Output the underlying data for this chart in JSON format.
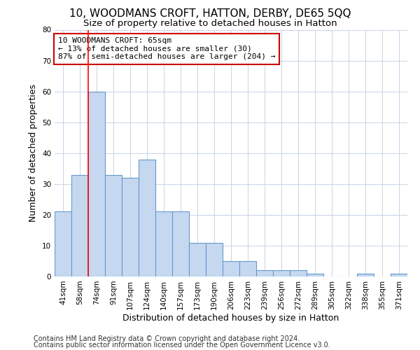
{
  "title": "10, WOODMANS CROFT, HATTON, DERBY, DE65 5QQ",
  "subtitle": "Size of property relative to detached houses in Hatton",
  "xlabel": "Distribution of detached houses by size in Hatton",
  "ylabel": "Number of detached properties",
  "categories": [
    "41sqm",
    "58sqm",
    "74sqm",
    "91sqm",
    "107sqm",
    "124sqm",
    "140sqm",
    "157sqm",
    "173sqm",
    "190sqm",
    "206sqm",
    "223sqm",
    "239sqm",
    "256sqm",
    "272sqm",
    "289sqm",
    "305sqm",
    "322sqm",
    "338sqm",
    "355sqm",
    "371sqm"
  ],
  "values": [
    21,
    33,
    60,
    33,
    32,
    38,
    21,
    21,
    11,
    11,
    5,
    5,
    2,
    2,
    2,
    1,
    0,
    0,
    1,
    0,
    1
  ],
  "bar_color": "#c5d8f0",
  "bar_edge_color": "#6699cc",
  "red_line_x": 1.5,
  "annotation_text": "10 WOODMANS CROFT: 65sqm\n← 13% of detached houses are smaller (30)\n87% of semi-detached houses are larger (204) →",
  "ylim": [
    0,
    80
  ],
  "yticks": [
    0,
    10,
    20,
    30,
    40,
    50,
    60,
    70,
    80
  ],
  "footer1": "Contains HM Land Registry data © Crown copyright and database right 2024.",
  "footer2": "Contains public sector information licensed under the Open Government Licence v3.0.",
  "title_fontsize": 11,
  "subtitle_fontsize": 9.5,
  "axis_label_fontsize": 9,
  "tick_fontsize": 7.5,
  "annotation_fontsize": 8,
  "footer_fontsize": 7,
  "background_color": "#ffffff",
  "grid_color": "#c8d4e8",
  "annotation_box_color": "#ffffff",
  "annotation_box_edge": "#cc0000"
}
